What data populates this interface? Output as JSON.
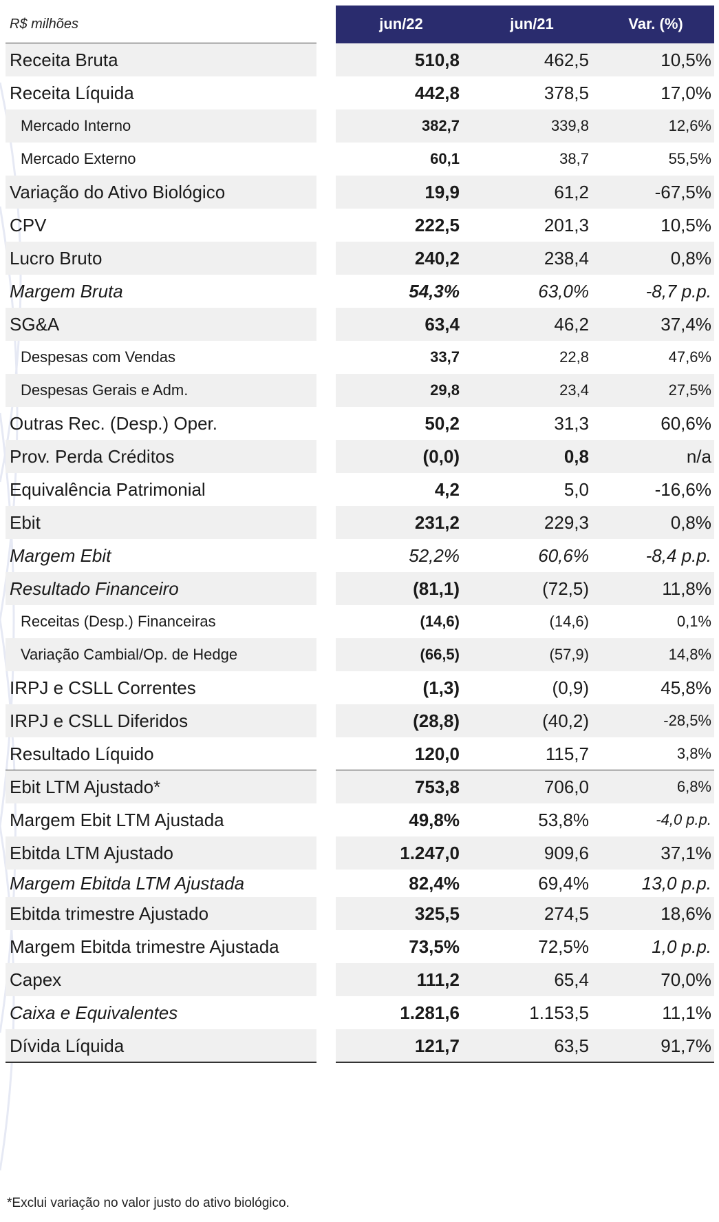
{
  "header": {
    "unit": "R$ milhões",
    "col1": "jun/22",
    "col2": "jun/21",
    "col3": "Var. (%)"
  },
  "rows": [
    {
      "label": "Receita Bruta",
      "v1": "510,8",
      "v2": "462,5",
      "v3": "10,5%"
    },
    {
      "label": "Receita Líquida",
      "v1": "442,8",
      "v2": "378,5",
      "v3": "17,0%"
    },
    {
      "label": "Mercado Interno",
      "v1": "382,7",
      "v2": "339,8",
      "v3": "12,6%"
    },
    {
      "label": "Mercado Externo",
      "v1": "60,1",
      "v2": "38,7",
      "v3": "55,5%"
    },
    {
      "label": "Variação do Ativo Biológico",
      "v1": "19,9",
      "v2": "61,2",
      "v3": "-67,5%"
    },
    {
      "label": "CPV",
      "v1": "222,5",
      "v2": "201,3",
      "v3": "10,5%"
    },
    {
      "label": "Lucro Bruto",
      "v1": "240,2",
      "v2": "238,4",
      "v3": "0,8%"
    },
    {
      "label": "Margem Bruta",
      "v1": "54,3%",
      "v2": "63,0%",
      "v3": "-8,7 p.p."
    },
    {
      "label": "SG&A",
      "v1": "63,4",
      "v2": "46,2",
      "v3": "37,4%"
    },
    {
      "label": "Despesas com Vendas",
      "v1": "33,7",
      "v2": "22,8",
      "v3": "47,6%"
    },
    {
      "label": "Despesas Gerais e Adm.",
      "v1": "29,8",
      "v2": "23,4",
      "v3": "27,5%"
    },
    {
      "label": "Outras Rec. (Desp.) Oper.",
      "v1": "50,2",
      "v2": "31,3",
      "v3": "60,6%"
    },
    {
      "label": "Prov. Perda Créditos",
      "v1": "(0,0)",
      "v2": "0,8",
      "v3": "n/a"
    },
    {
      "label": "Equivalência Patrimonial",
      "v1": "4,2",
      "v2": "5,0",
      "v3": "-16,6%"
    },
    {
      "label": "Ebit",
      "v1": "231,2",
      "v2": "229,3",
      "v3": "0,8%"
    },
    {
      "label": "Margem Ebit",
      "v1": "52,2%",
      "v2": "60,6%",
      "v3": "-8,4 p.p."
    },
    {
      "label": "Resultado Financeiro",
      "v1": "(81,1)",
      "v2": "(72,5)",
      "v3": "11,8%"
    },
    {
      "label": "Receitas (Desp.) Financeiras",
      "v1": "(14,6)",
      "v2": "(14,6)",
      "v3": "0,1%"
    },
    {
      "label": "Variação Cambial/Op. de Hedge",
      "v1": "(66,5)",
      "v2": "(57,9)",
      "v3": "14,8%"
    },
    {
      "label": "IRPJ e CSLL Correntes",
      "v1": "(1,3)",
      "v2": "(0,9)",
      "v3": "45,8%"
    },
    {
      "label": "IRPJ e CSLL Diferidos",
      "v1": "(28,8)",
      "v2": "(40,2)",
      "v3": "-28,5%"
    },
    {
      "label": "Resultado Líquido",
      "v1": "120,0",
      "v2": "115,7",
      "v3": "3,8%"
    },
    {
      "label": "Ebit LTM Ajustado*",
      "v1": "753,8",
      "v2": "706,0",
      "v3": "6,8%"
    },
    {
      "label": "Margem Ebit LTM Ajustada",
      "v1": "49,8%",
      "v2": "53,8%",
      "v3": "-4,0 p.p."
    },
    {
      "label": "Ebitda LTM Ajustado",
      "v1": "1.247,0",
      "v2": "909,6",
      "v3": "37,1%"
    },
    {
      "label": "Margem Ebitda LTM Ajustada",
      "v1": "82,4%",
      "v2": "69,4%",
      "v3": "13,0 p.p."
    },
    {
      "label": "Ebitda trimestre Ajustado",
      "v1": "325,5",
      "v2": "274,5",
      "v3": "18,6%"
    },
    {
      "label": "Margem Ebitda trimestre Ajustada",
      "v1": "73,5%",
      "v2": "72,5%",
      "v3": "1,0 p.p."
    },
    {
      "label": "Capex",
      "v1": "111,2",
      "v2": "65,4",
      "v3": "70,0%"
    },
    {
      "label": "Caixa e Equivalentes",
      "v1": "1.281,6",
      "v2": "1.153,5",
      "v3": "11,1%"
    },
    {
      "label": "Dívida Líquida",
      "v1": "121,7",
      "v2": "63,5",
      "v3": "91,7%"
    }
  ],
  "footnote": "*Exclui variação no valor justo do ativo biológico."
}
